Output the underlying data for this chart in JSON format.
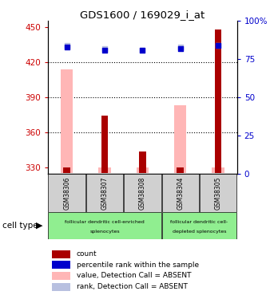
{
  "title": "GDS1600 / 169029_i_at",
  "samples": [
    "GSM38306",
    "GSM38307",
    "GSM38308",
    "GSM38304",
    "GSM38305"
  ],
  "count_values": [
    330,
    374,
    344,
    330,
    448
  ],
  "pink_bar_values": [
    414,
    330,
    330,
    383,
    330
  ],
  "blue_dot_values": [
    83,
    81,
    81,
    82,
    84
  ],
  "light_blue_dot_values": [
    84,
    82,
    81,
    83,
    84
  ],
  "ylim_left": [
    325,
    455
  ],
  "ylim_right": [
    0,
    100
  ],
  "yticks_left": [
    330,
    360,
    390,
    420,
    450
  ],
  "yticks_right": [
    0,
    25,
    50,
    75,
    100
  ],
  "left_axis_color": "#cc0000",
  "right_axis_color": "#0000cc",
  "bar_color_dark_red": "#aa0000",
  "bar_color_pink": "#ffb6b6",
  "dot_color_blue": "#0000cc",
  "dot_color_light_blue": "#b8c0e0",
  "sample_box_color": "#d0d0d0",
  "group1_color": "#90EE90",
  "group2_color": "#90EE90",
  "group1_label_line1": "follicular dendritic cell-enriched",
  "group1_label_line2": "splenocytes",
  "group2_label_line1": "follicular dendritic cell-",
  "group2_label_line2": "depleted splenocytes",
  "legend_items": [
    {
      "color": "#aa0000",
      "label": "count"
    },
    {
      "color": "#0000cc",
      "label": "percentile rank within the sample"
    },
    {
      "color": "#ffb6b6",
      "label": "value, Detection Call = ABSENT"
    },
    {
      "color": "#b8c0e0",
      "label": "rank, Detection Call = ABSENT"
    }
  ],
  "cell_type_label": "cell type",
  "pink_bar_width": 0.32,
  "red_bar_width": 0.18
}
